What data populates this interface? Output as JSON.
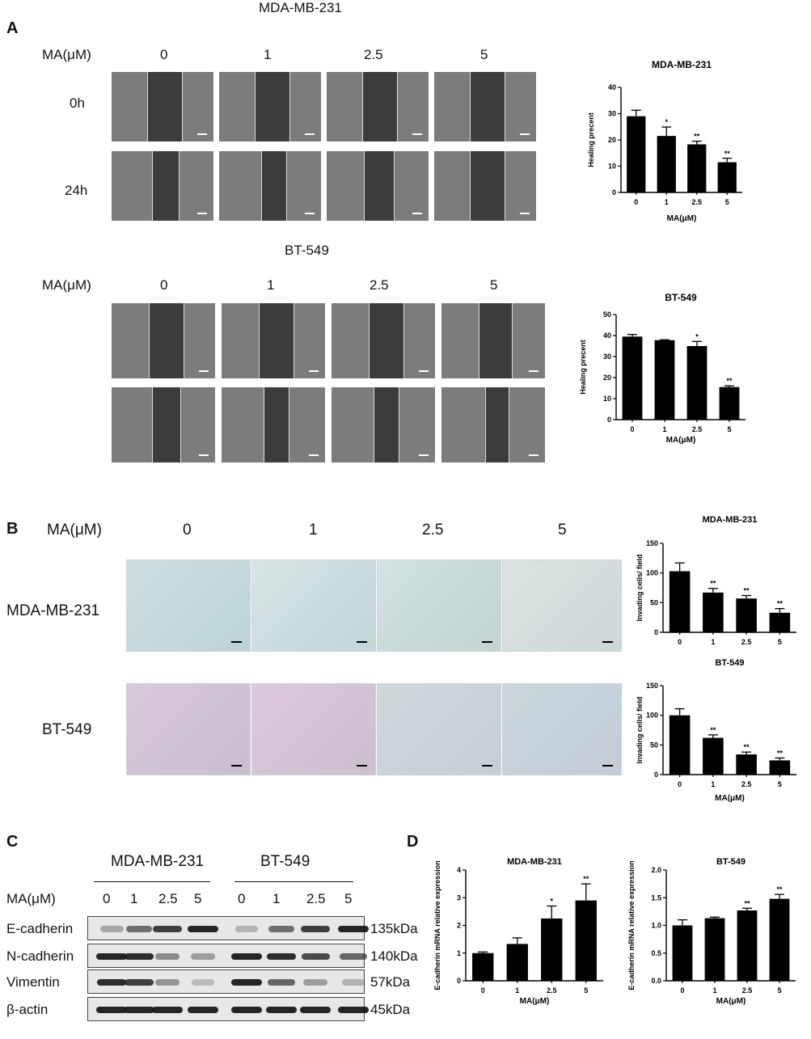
{
  "panel_a": {
    "letter": "A",
    "top": {
      "cell_line": "MDA-MB-231",
      "treatment_label": "MA(μM)",
      "doses": [
        "0",
        "1",
        "2.5",
        "5"
      ],
      "rows": [
        "0h",
        "24h"
      ]
    },
    "bottom": {
      "cell_line": "BT-549",
      "treatment_label": "MA(μM)",
      "doses": [
        "0",
        "1",
        "2.5",
        "5"
      ]
    }
  },
  "panel_b": {
    "letter": "B",
    "treatment_label": "MA(μM)",
    "doses": [
      "0",
      "1",
      "2.5",
      "5"
    ],
    "rows": [
      "MDA-MB-231",
      "BT-549"
    ]
  },
  "panel_c": {
    "letter": "C",
    "groups": [
      "MDA-MB-231",
      "BT-549"
    ],
    "treatment_label": "MA(μM)",
    "doses": [
      "0",
      "1",
      "2.5",
      "5",
      "0",
      "1",
      "2.5",
      "5"
    ],
    "proteins": [
      {
        "name": "E-cadherin",
        "size": "135kDa",
        "intensity": [
          0.25,
          0.55,
          0.8,
          0.95,
          0.2,
          0.55,
          0.8,
          0.95
        ]
      },
      {
        "name": "N-cadherin",
        "size": "140kDa",
        "intensity": [
          0.95,
          0.9,
          0.4,
          0.3,
          0.95,
          0.9,
          0.75,
          0.6
        ]
      },
      {
        "name": "Vimentin",
        "size": "57kDa",
        "intensity": [
          0.9,
          0.8,
          0.35,
          0.15,
          0.95,
          0.6,
          0.3,
          0.2
        ]
      },
      {
        "name": "β-actin",
        "size": "45kDa",
        "intensity": [
          0.95,
          0.95,
          0.95,
          0.95,
          0.95,
          0.95,
          0.95,
          0.95
        ]
      }
    ]
  },
  "panel_d": {
    "letter": "D"
  },
  "chart_data": [
    {
      "type": "bar",
      "title": "MDA-MB-231",
      "xlabel": "MA(μM)",
      "ylabel": "Healing precent",
      "categories": [
        "0",
        "1",
        "2.5",
        "5"
      ],
      "values": [
        29,
        21.5,
        18.3,
        11.5
      ],
      "errors": [
        2.3,
        3.4,
        1.2,
        1.5
      ],
      "significance": [
        "",
        "*",
        "**",
        "**"
      ],
      "ylim": [
        0,
        40
      ],
      "yticks": [
        0,
        10,
        20,
        30,
        40
      ],
      "grid": false
    },
    {
      "type": "bar",
      "title": "BT-549",
      "xlabel": "MA(μM)",
      "ylabel": "Healing precent",
      "categories": [
        "0",
        "1",
        "2.5",
        "5"
      ],
      "values": [
        39.5,
        37.8,
        35,
        15.5
      ],
      "errors": [
        1.0,
        0.2,
        2.2,
        0.6
      ],
      "significance": [
        "",
        "",
        "*",
        "**"
      ],
      "ylim": [
        0,
        50
      ],
      "yticks": [
        0,
        10,
        20,
        30,
        40,
        50
      ],
      "grid": false
    },
    {
      "type": "bar",
      "title": "MDA-MB-231",
      "xlabel": "",
      "ylabel": "Invading cells/ field",
      "categories": [
        "0",
        "1",
        "2.5",
        "5"
      ],
      "values": [
        103,
        67,
        57,
        33
      ],
      "errors": [
        14,
        7,
        5,
        7
      ],
      "significance": [
        "",
        "**",
        "**",
        "**"
      ],
      "ylim": [
        0,
        150
      ],
      "yticks": [
        0,
        50,
        100,
        150
      ],
      "grid": false
    },
    {
      "type": "bar",
      "title": "BT-549",
      "xlabel": "MA(μM)",
      "ylabel": "Invading cells/ field",
      "categories": [
        "0",
        "1",
        "2.5",
        "5"
      ],
      "values": [
        100,
        62,
        34,
        24
      ],
      "errors": [
        11,
        5,
        4,
        4
      ],
      "significance": [
        "",
        "**",
        "**",
        "**"
      ],
      "ylim": [
        0,
        150
      ],
      "yticks": [
        0,
        50,
        100,
        150
      ],
      "grid": false
    },
    {
      "type": "bar",
      "title": "MDA-MB-231",
      "xlabel": "MA(μM)",
      "ylabel": "E-cadherin mRNA relative expression",
      "categories": [
        "0",
        "1",
        "2.5",
        "5"
      ],
      "values": [
        1.0,
        1.33,
        2.25,
        2.9
      ],
      "errors": [
        0.04,
        0.22,
        0.45,
        0.6
      ],
      "significance": [
        "",
        "",
        "*",
        "**"
      ],
      "ylim": [
        0,
        4
      ],
      "yticks": [
        0,
        1,
        2,
        3,
        4
      ],
      "grid": false
    },
    {
      "type": "bar",
      "title": "BT-549",
      "xlabel": "MA(μM)",
      "ylabel": "E-cadherin mRNA relative expression",
      "categories": [
        "0",
        "1",
        "2.5",
        "5"
      ],
      "values": [
        1.0,
        1.13,
        1.27,
        1.48
      ],
      "errors": [
        0.1,
        0.02,
        0.04,
        0.08
      ],
      "significance": [
        "",
        "",
        "**",
        "**"
      ],
      "ylim": [
        0,
        2.0
      ],
      "yticks": [
        0.0,
        0.5,
        1.0,
        1.5,
        2.0
      ],
      "grid": false
    }
  ]
}
